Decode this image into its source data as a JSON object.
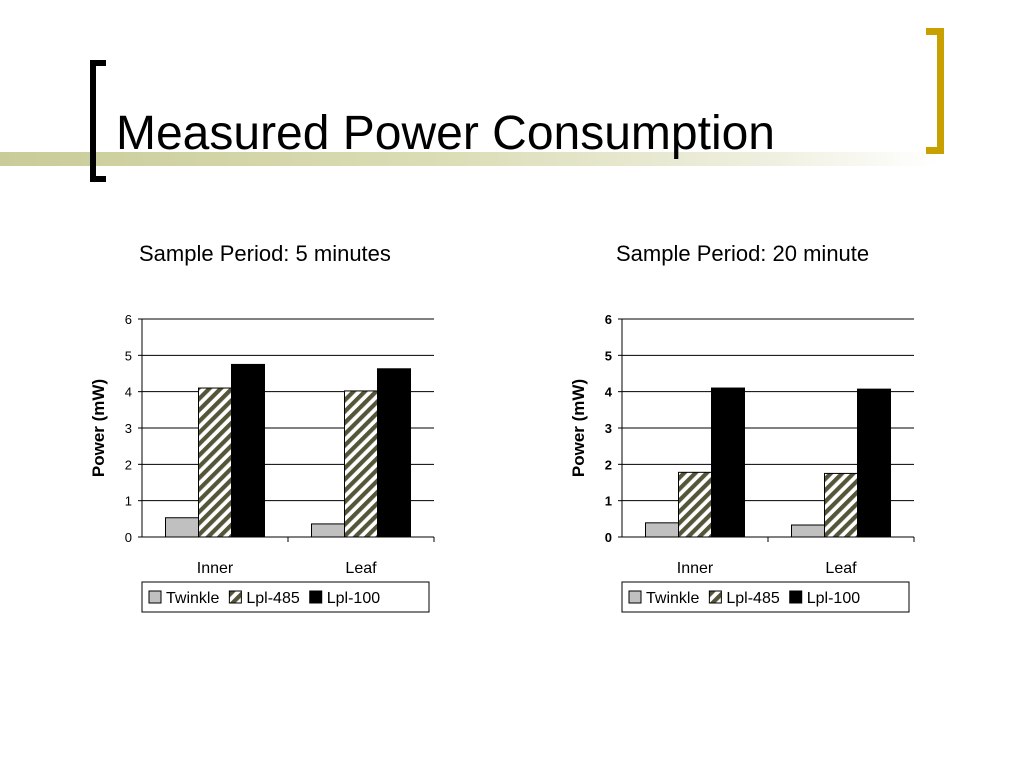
{
  "slide": {
    "title": "Measured Power Consumption"
  },
  "colors": {
    "bracket_left": "#000000",
    "bracket_right": "#c8a000",
    "title_band": "#c9cc98"
  },
  "chart_data": [
    {
      "type": "bar",
      "title": "Sample Period: 5 minutes",
      "xlabel": "",
      "ylabel": "Power (mW)",
      "categories": [
        "Inner",
        "Leaf"
      ],
      "ylim": [
        0,
        6
      ],
      "yticks": [
        "0",
        "1",
        "2",
        "3",
        "4",
        "5",
        "6"
      ],
      "grid": true,
      "legend": "bottom",
      "series": [
        {
          "name": "Twinkle",
          "values": [
            0.53,
            0.36
          ],
          "color": "#c0c0c0",
          "pattern": "solid"
        },
        {
          "name": "Lpl-485",
          "values": [
            4.1,
            4.02
          ],
          "color": "#9a9a78",
          "pattern": "hatch"
        },
        {
          "name": "Lpl-100",
          "values": [
            4.75,
            4.63
          ],
          "color": "#000000",
          "pattern": "solid"
        }
      ]
    },
    {
      "type": "bar",
      "title": "Sample Period: 20 minute",
      "xlabel": "",
      "ylabel": "Power (mW)",
      "categories": [
        "Inner",
        "Leaf"
      ],
      "ylim": [
        0,
        6
      ],
      "yticks": [
        "0",
        "1",
        "2",
        "3",
        "4",
        "5",
        "6"
      ],
      "grid": true,
      "legend": "bottom",
      "series": [
        {
          "name": "Twinkle",
          "values": [
            0.39,
            0.33
          ],
          "color": "#c0c0c0",
          "pattern": "solid"
        },
        {
          "name": "Lpl-485",
          "values": [
            1.78,
            1.75
          ],
          "color": "#9a9a78",
          "pattern": "hatch"
        },
        {
          "name": "Lpl-100",
          "values": [
            4.1,
            4.07
          ],
          "color": "#000000",
          "pattern": "solid"
        }
      ]
    }
  ]
}
